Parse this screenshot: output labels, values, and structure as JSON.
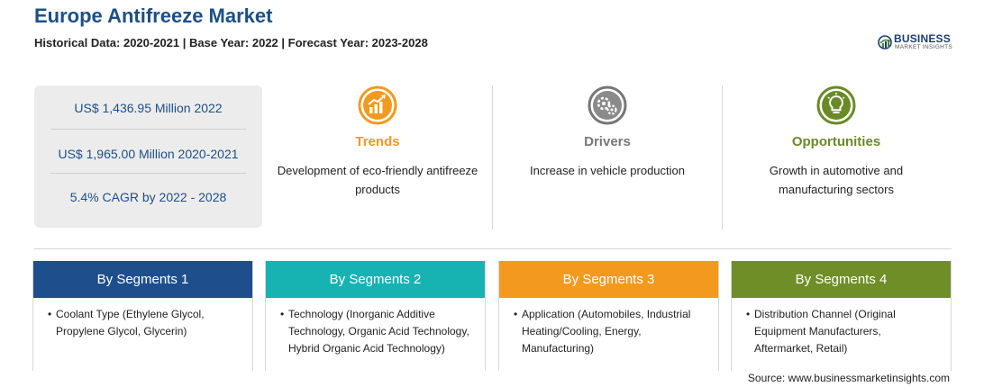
{
  "header": {
    "title": "Europe Antifreeze Market",
    "subtitle": "Historical Data: 2020-2021 | Base Year: 2022 | Forecast Year: 2023-2028"
  },
  "logo": {
    "main": "BUSINESS",
    "sub": "MARKET INSIGHTS"
  },
  "stats": [
    "US$ 1,436.95 Million 2022",
    "US$ 1,965.00 Million 2020-2021",
    "5.4% CAGR by 2022 - 2028"
  ],
  "cards": [
    {
      "title": "Trends",
      "text": "Development of eco-friendly antifreeze products",
      "color": "#f19a20",
      "icon": "trend-chart-icon"
    },
    {
      "title": "Drivers",
      "text": "Increase in vehicle production",
      "color": "#777777",
      "icon": "gears-icon"
    },
    {
      "title": "Opportunities",
      "text": "Growth in automotive and manufacturing sectors",
      "color": "#6a8a26",
      "icon": "lightbulb-icon"
    }
  ],
  "segments": [
    {
      "title": "By Segments 1",
      "text": "Coolant Type (Ethylene Glycol, Propylene Glycol, Glycerin)",
      "color": "#1e4e8c"
    },
    {
      "title": "By Segments 2",
      "text": "Technology (Inorganic Additive Technology, Organic Acid Technology, Hybrid Organic Acid Technology)",
      "color": "#17b3b3"
    },
    {
      "title": "By Segments 3",
      "text": "Application (Automobiles, Industrial Heating/Cooling, Energy, Manufacturing)",
      "color": "#f39a1e"
    },
    {
      "title": "By Segments 4",
      "text": "Distribution Channel (Original Equipment Manufacturers, Aftermarket, Retail)",
      "color": "#6f8e28"
    }
  ],
  "bullet": "•",
  "source": "Source: www.businessmarketinsights.com"
}
